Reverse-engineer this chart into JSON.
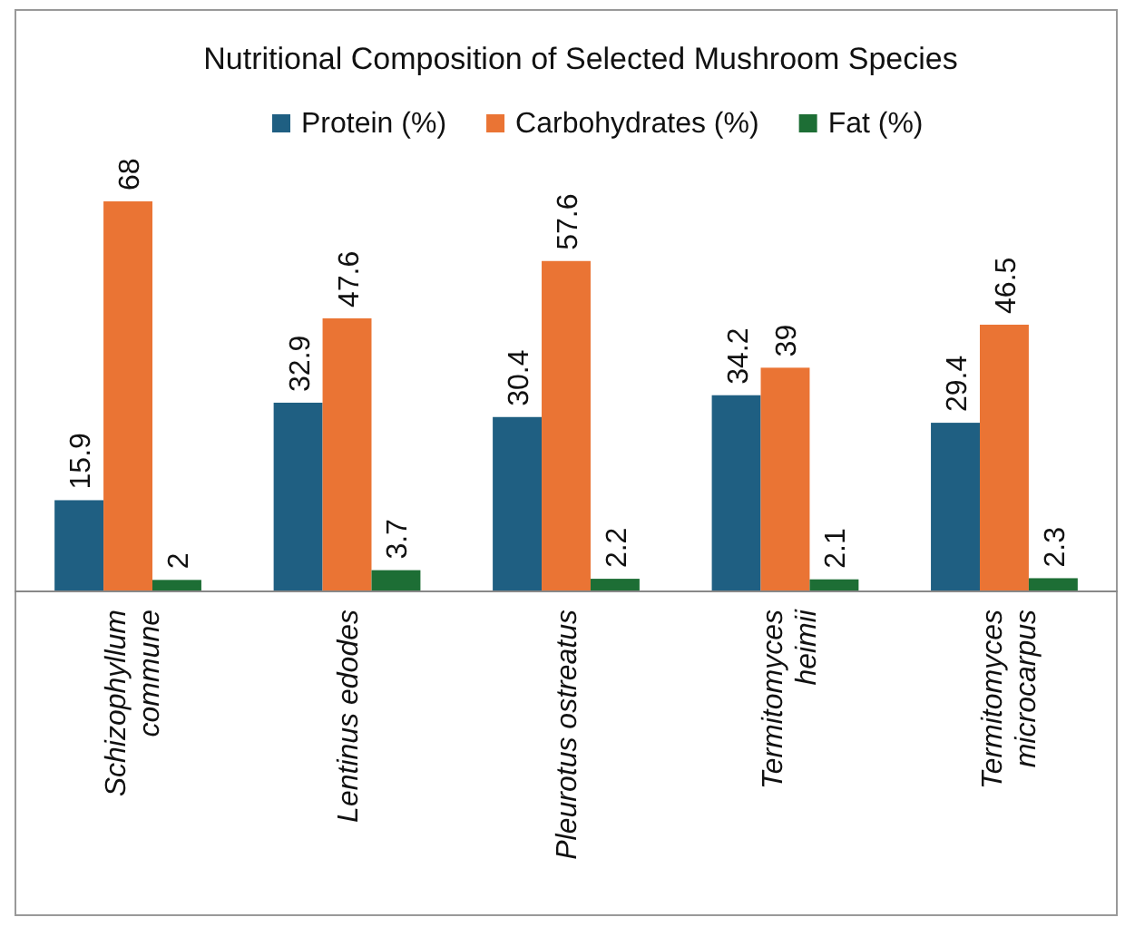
{
  "chart_data": {
    "type": "bar",
    "title": "Nutritional Composition of Selected Mushroom Species",
    "categories": [
      "Schizophyllum commune",
      "Lentinus edodes",
      "Pleurotus ostreatus",
      "Termitomyces heimii",
      "Termitomyces microcarpus"
    ],
    "series": [
      {
        "name": "Protein (%)",
        "color": "#1f5f82",
        "values": [
          15.9,
          32.9,
          30.4,
          34.2,
          29.4
        ]
      },
      {
        "name": "Carbohydrates (%)",
        "color": "#ea7434",
        "values": [
          68,
          47.6,
          57.6,
          39,
          46.5
        ]
      },
      {
        "name": "Fat (%)",
        "color": "#1d6e35",
        "values": [
          2,
          3.7,
          2.2,
          2.1,
          2.3
        ]
      }
    ],
    "data_labels": true,
    "legend": "top"
  }
}
